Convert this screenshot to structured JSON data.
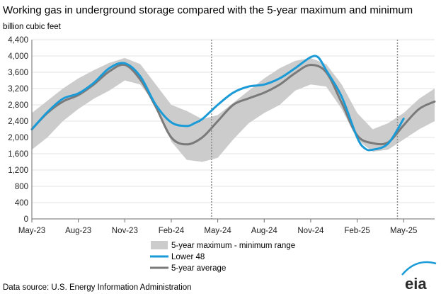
{
  "chart_data": {
    "type": "area",
    "title": "Working gas in underground  storage compared with the 5-year maximum and minimum",
    "ylabel": "billion cubic feet",
    "xlabel": "",
    "ylim": [
      0,
      4400
    ],
    "yticks": [
      0,
      400,
      800,
      1200,
      1600,
      2000,
      2400,
      2800,
      3200,
      3600,
      4000,
      4400
    ],
    "ytick_labels": [
      "0",
      "400",
      "800",
      "1,200",
      "1,600",
      "2,000",
      "2,400",
      "2,800",
      "3,200",
      "3,600",
      "4,000",
      "4,400"
    ],
    "xlim": [
      0,
      26
    ],
    "x_unit": "months since May-23",
    "xticks": [
      {
        "x": 0,
        "label": "May-23"
      },
      {
        "x": 3,
        "label": "Aug-23"
      },
      {
        "x": 6,
        "label": "Nov-23"
      },
      {
        "x": 9,
        "label": "Feb-24"
      },
      {
        "x": 12,
        "label": "May-24"
      },
      {
        "x": 15,
        "label": "Aug-24"
      },
      {
        "x": 18,
        "label": "Nov-24"
      },
      {
        "x": 21,
        "label": "Feb-25"
      },
      {
        "x": 24,
        "label": "May-25"
      }
    ],
    "vertical_markers": [
      11.6,
      23.6
    ],
    "legend": [
      "5-year maximum - minimum range",
      "Lower 48",
      "5-year average"
    ],
    "colors": {
      "range": "#cccccc",
      "lower48": "#1a9bd7",
      "average": "#7a7a7a",
      "marker": "#8c8c8c"
    },
    "range_band": {
      "x": [
        0,
        1,
        2,
        3,
        4,
        5,
        6,
        7,
        8,
        9,
        10,
        11,
        12,
        13,
        14,
        15,
        16,
        17,
        18,
        19,
        20,
        21,
        22,
        23,
        24,
        25,
        26
      ],
      "max": [
        2600,
        2900,
        3200,
        3450,
        3650,
        3830,
        3950,
        3800,
        3300,
        2800,
        2650,
        2450,
        2550,
        2850,
        3150,
        3450,
        3700,
        3880,
        3950,
        3800,
        3300,
        2600,
        2200,
        2350,
        2600,
        2950,
        3200
      ],
      "min": [
        1700,
        2000,
        2400,
        2700,
        2950,
        3150,
        3400,
        3300,
        2800,
        1900,
        1450,
        1400,
        1500,
        1950,
        2350,
        2600,
        2800,
        3150,
        3300,
        3250,
        2700,
        1950,
        1650,
        1700,
        1950,
        2200,
        2400
      ]
    },
    "series": [
      {
        "name": "Lower 48",
        "x": [
          0,
          1,
          2,
          3,
          4,
          5,
          6,
          7,
          8,
          9,
          10,
          10.5,
          11,
          12,
          13,
          14,
          15,
          16,
          17,
          18,
          18.5,
          19,
          20,
          21,
          21.5,
          22,
          23,
          24
        ],
        "values": [
          2200,
          2620,
          2950,
          3080,
          3340,
          3700,
          3820,
          3500,
          2800,
          2370,
          2280,
          2350,
          2450,
          2800,
          3100,
          3250,
          3300,
          3450,
          3700,
          3970,
          3960,
          3650,
          3000,
          2000,
          1730,
          1700,
          1850,
          2460
        ]
      },
      {
        "name": "5-year average",
        "x": [
          0,
          1,
          2,
          3,
          4,
          5,
          6,
          7,
          8,
          9,
          10,
          11,
          12,
          13,
          14,
          15,
          16,
          17,
          18,
          19,
          20,
          21,
          22,
          23,
          24,
          25,
          26
        ],
        "values": [
          2200,
          2600,
          2880,
          3040,
          3300,
          3620,
          3780,
          3420,
          2750,
          2000,
          1830,
          2000,
          2400,
          2800,
          2960,
          3100,
          3300,
          3580,
          3780,
          3600,
          2850,
          2050,
          1860,
          1880,
          2300,
          2700,
          2880
        ]
      }
    ]
  },
  "footer": {
    "source": "Data source:  U.S. Energy Information Administration",
    "logo_text": "eia"
  }
}
